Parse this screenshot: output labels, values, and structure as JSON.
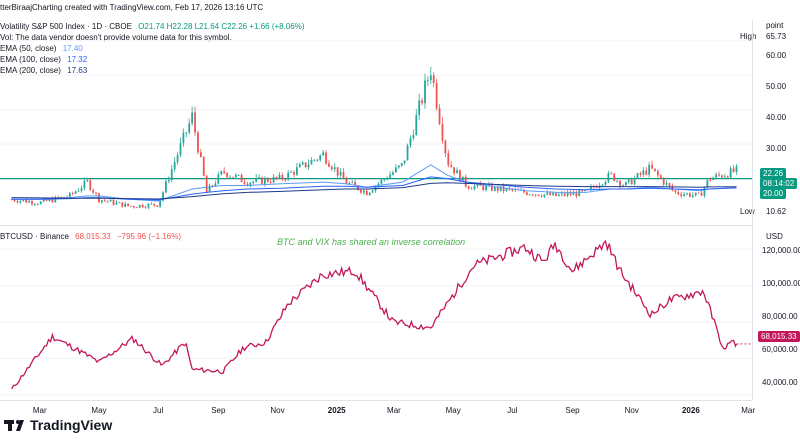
{
  "header": {
    "title": "tterBiraajCharting created with TradingView.com, Feb 17, 2026 13:16 UTC"
  },
  "vix_panel": {
    "name": "Volatility S&P 500 Index · 1D · CBOE",
    "ohlc": "O21.74 H22.28 L21.64 C22.26 +1.66 (+8.06%)",
    "vol_note": "Vol: The data vendor doesn't provide volume data for this symbol.",
    "ema50_label": "EMA (50, close)",
    "ema50_value": "17.40",
    "ema100_label": "EMA (100, close)",
    "ema100_value": "17.32",
    "ema200_label": "EMA (200, close)",
    "ema200_value": "17.63",
    "axis_unit": "point",
    "high_label": "High",
    "high_value": "65.73",
    "low_label": "Low",
    "low_value": "10.62",
    "last_price": "22.26",
    "countdown": "08:14:02",
    "line_value": "20.00",
    "y_ticks": [
      "60.00",
      "50.00",
      "40.00",
      "30.00",
      "20.00"
    ]
  },
  "btc_panel": {
    "name": "BTCUSD · Binance",
    "value": "68,015.33",
    "change": "−795.96 (−1.16%)",
    "annotation": "BTC and VIX has shared an inverse correlation",
    "axis_unit": "USD",
    "last_price": "68,015.33",
    "y_ticks": [
      "120,000.00",
      "100,000.00",
      "80,000.00",
      "60,000.00",
      "40,000.00"
    ]
  },
  "x_axis": [
    "Mar",
    "May",
    "Jul",
    "Sep",
    "Nov",
    "2025",
    "Mar",
    "May",
    "Jul",
    "Sep",
    "Nov",
    "2026",
    "Mar"
  ],
  "brand": "TradingView",
  "colors": {
    "up": "#26a69a",
    "down": "#ef5350",
    "btc_line": "#c2185b",
    "hline": "#089981",
    "ema50": "#5b9cf6",
    "ema100": "#2962ff",
    "ema200": "#1e3a8a",
    "annotation": "#4caf50"
  },
  "chart_data": [
    {
      "type": "line",
      "title": "Volatility S&P 500 Index · 1D · CBOE",
      "xlabel": "",
      "ylabel": "point",
      "ylim": [
        8,
        66
      ],
      "horizontal_line": 20.0,
      "x": [
        "2024-02-01",
        "2024-03-01",
        "2024-04-01",
        "2024-04-19",
        "2024-05-01",
        "2024-06-01",
        "2024-07-01",
        "2024-08-05",
        "2024-08-20",
        "2024-09-06",
        "2024-10-01",
        "2024-11-05",
        "2024-12-18",
        "2025-01-10",
        "2025-02-01",
        "2025-03-10",
        "2025-04-08",
        "2025-04-25",
        "2025-05-15",
        "2025-06-15",
        "2025-07-15",
        "2025-08-15",
        "2025-09-15",
        "2025-10-10",
        "2025-10-25",
        "2025-11-20",
        "2025-12-15",
        "2026-01-10",
        "2026-01-20",
        "2026-02-17"
      ],
      "series": [
        {
          "name": "VIX",
          "values": [
            14,
            13,
            15,
            19,
            14,
            12,
            12.5,
            38,
            16,
            22,
            19,
            20,
            27,
            19,
            16,
            24,
            52,
            25,
            18,
            17,
            16,
            15,
            16,
            21,
            18,
            23,
            16,
            15,
            20,
            22.26
          ]
        },
        {
          "name": "EMA (50, close)",
          "values": [
            14,
            14,
            14.5,
            15,
            15,
            14,
            13.5,
            17,
            17.5,
            18,
            18,
            18.5,
            19,
            18.5,
            17.5,
            19,
            24,
            21,
            19,
            17.5,
            16.5,
            16,
            16,
            17,
            17,
            17.5,
            17,
            16.5,
            17,
            17.4
          ]
        },
        {
          "name": "EMA (100, close)",
          "values": [
            14,
            14,
            14.2,
            14.5,
            14.5,
            14,
            13.8,
            15.5,
            16,
            16.5,
            17,
            17.2,
            17.8,
            17.8,
            17.5,
            18,
            20.5,
            20,
            19,
            18.2,
            17.5,
            17,
            16.8,
            17,
            17,
            17.2,
            17,
            16.8,
            17,
            17.32
          ]
        },
        {
          "name": "EMA (200, close)",
          "values": [
            14.5,
            14.4,
            14.3,
            14.3,
            14.3,
            14.2,
            14.1,
            14.8,
            15.2,
            15.6,
            16,
            16.3,
            16.8,
            17,
            17,
            17.4,
            18.6,
            18.8,
            18.6,
            18.3,
            18,
            17.8,
            17.7,
            17.7,
            17.7,
            17.7,
            17.6,
            17.5,
            17.6,
            17.63
          ]
        }
      ]
    },
    {
      "type": "line",
      "title": "BTCUSD · Binance",
      "xlabel": "",
      "ylabel": "USD",
      "ylim": [
        40000,
        125000
      ],
      "x": [
        "2024-02-01",
        "2024-03-14",
        "2024-04-15",
        "2024-05-01",
        "2024-06-05",
        "2024-07-05",
        "2024-07-29",
        "2024-08-05",
        "2024-09-06",
        "2024-09-27",
        "2024-10-20",
        "2024-11-12",
        "2024-12-17",
        "2025-01-20",
        "2025-02-28",
        "2025-04-08",
        "2025-05-22",
        "2025-07-14",
        "2025-08-02",
        "2025-08-14",
        "2025-09-01",
        "2025-10-06",
        "2025-10-20",
        "2025-11-21",
        "2025-12-10",
        "2026-01-14",
        "2026-02-05",
        "2026-02-10",
        "2026-02-17"
      ],
      "series": [
        {
          "name": "BTCUSD",
          "values": [
            43000,
            72000,
            63000,
            58000,
            71000,
            56000,
            69000,
            54000,
            53000,
            66000,
            69000,
            90000,
            106000,
            108000,
            80000,
            77000,
            111000,
            121000,
            113000,
            123000,
            108000,
            124000,
            108000,
            84000,
            92000,
            97000,
            63000,
            70000,
            68015.33
          ]
        }
      ]
    }
  ]
}
